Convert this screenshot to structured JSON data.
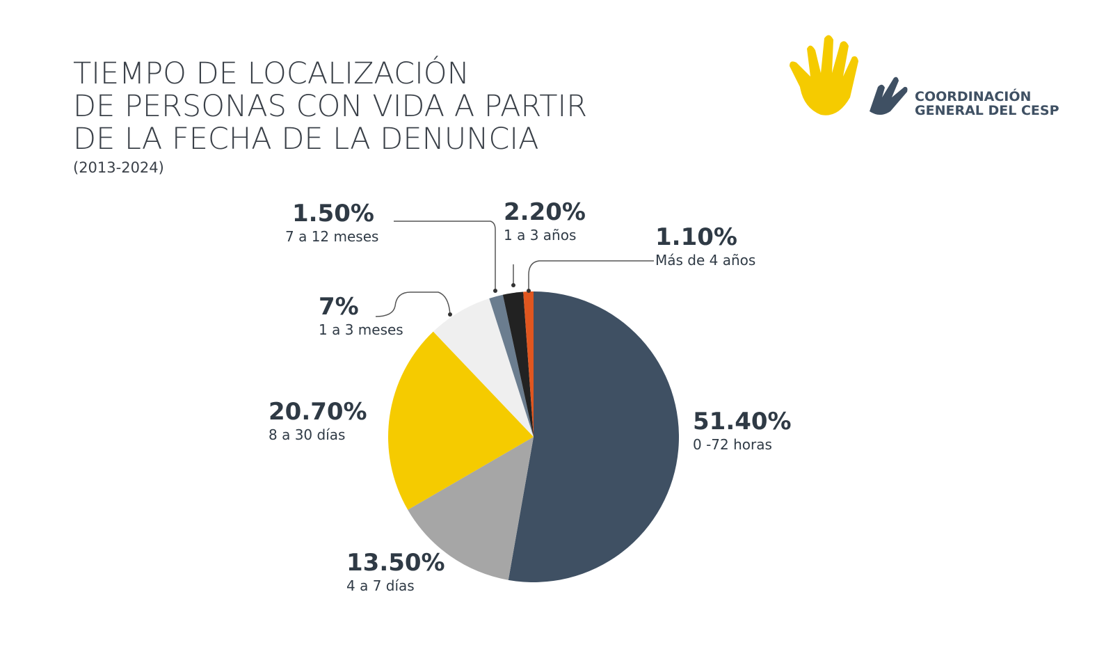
{
  "logo": {
    "lines": [
      "COORDINACIÓN",
      "GENERAL DEL CESP"
    ]
  },
  "chart_data": {
    "type": "pie",
    "title": [
      "TIEMPO DE LOCALIZACIÓN",
      "DE PERSONAS CON VIDA A PARTIR",
      "DE LA FECHA DE LA DENUNCIA"
    ],
    "subtitle": "(2013-2024)",
    "categories": [
      "0 -72 horas",
      "4 a 7 días",
      "8 a 30 días",
      "1 a 3 meses",
      "7 a 12 meses",
      "1 a 3 años",
      "Más de 4 años"
    ],
    "values": [
      51.4,
      13.5,
      20.7,
      7,
      1.5,
      2.2,
      1.1
    ],
    "value_labels": [
      "51.40%",
      "13.50%",
      "20.70%",
      "7%",
      "1.50%",
      "2.20%",
      "1.10%"
    ],
    "colors": [
      "#3f5063",
      "#a6a6a6",
      "#f5cb00",
      "#efefef",
      "#6b7d8f",
      "#222222",
      "#e0561f"
    ]
  }
}
